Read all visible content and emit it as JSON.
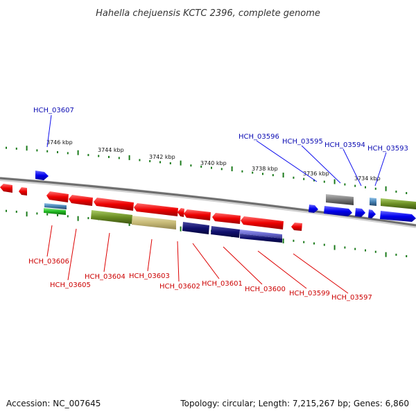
{
  "title": "Hahella chejuensis KCTC 2396, complete genome",
  "footer": {
    "accession": "Accession: NC_007645",
    "summary": "Topology: circular; Length: 7,215,267 bp; Genes: 6,860"
  },
  "colors": {
    "forward_gene": "#1010ee",
    "reverse_gene": "#ee1010",
    "backbone": "#777777",
    "ticks": "#1a7a1a",
    "top_label": "#0b0bb3",
    "bottom_label": "#cc0000"
  },
  "scale_labels": [
    "3746 kbp",
    "3744 kbp",
    "3742 kbp",
    "3740 kbp",
    "3738 kbp",
    "3736 kbp",
    "3734 kbp"
  ],
  "gene_labels_top": [
    "HCH_03607",
    "HCH_03596",
    "HCH_03595",
    "HCH_03594",
    "HCH_03593"
  ],
  "gene_labels_bottom": [
    "HCH_03606",
    "HCH_03605",
    "HCH_03604",
    "HCH_03603",
    "HCH_03602",
    "HCH_03601",
    "HCH_03600",
    "HCH_03599",
    "HCH_03597"
  ]
}
